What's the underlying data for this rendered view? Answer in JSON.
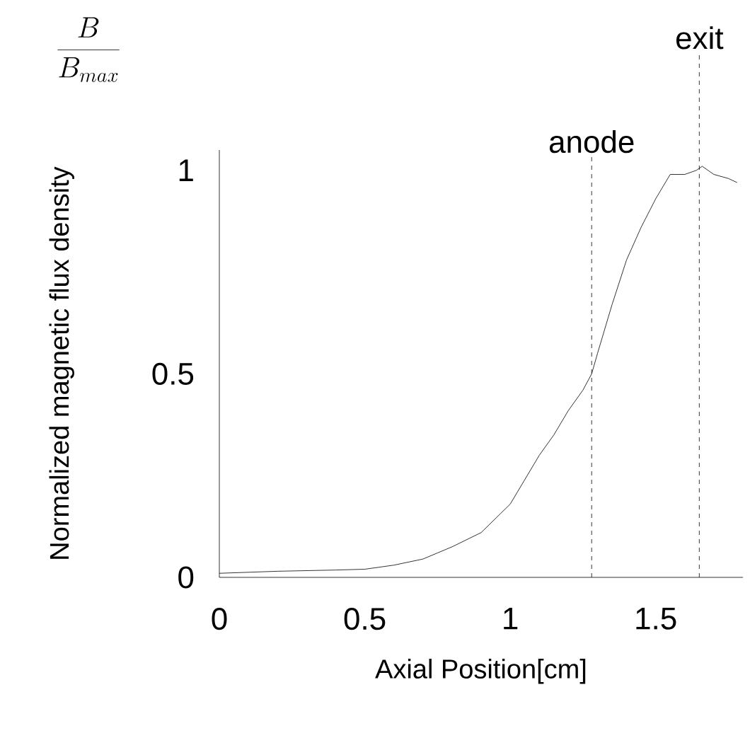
{
  "chart_data": {
    "type": "line",
    "xlabel": "Axial Position[cm]",
    "ylabel": "Normalized magnetic flux density",
    "annotations": [
      "\\frac{B}{B_{max}}"
    ],
    "x": [
      0,
      0.2,
      0.4,
      0.5,
      0.6,
      0.7,
      0.75,
      0.8,
      0.9,
      1,
      1.05,
      1.1,
      1.15,
      1.2,
      1.25,
      1.28,
      1.3,
      1.35,
      1.4,
      1.45,
      1.5,
      1.55,
      1.6,
      1.64,
      1.66,
      1.7,
      1.75,
      1.78
    ],
    "values": [
      0.01,
      0.015,
      0.018,
      0.02,
      0.03,
      0.045,
      0.06,
      0.075,
      0.11,
      0.18,
      0.24,
      0.3,
      0.35,
      0.41,
      0.46,
      0.5,
      0.55,
      0.67,
      0.78,
      0.86,
      0.93,
      0.99,
      0.99,
      1.0,
      1.01,
      0.99,
      0.98,
      0.97
    ],
    "color": "#000000",
    "xlim": [
      0,
      1.8
    ],
    "ylim": [
      0,
      1.05
    ],
    "xticks": [
      0,
      0.5,
      1,
      1.5
    ],
    "yticks": [
      0,
      0.5,
      1
    ],
    "ref_lines": [
      {
        "axis": "x",
        "value": 1.28,
        "label": "anode",
        "line_style": "dashed"
      },
      {
        "axis": "x",
        "value": 1.65,
        "label": "exit",
        "line_style": "dashed"
      }
    ]
  }
}
